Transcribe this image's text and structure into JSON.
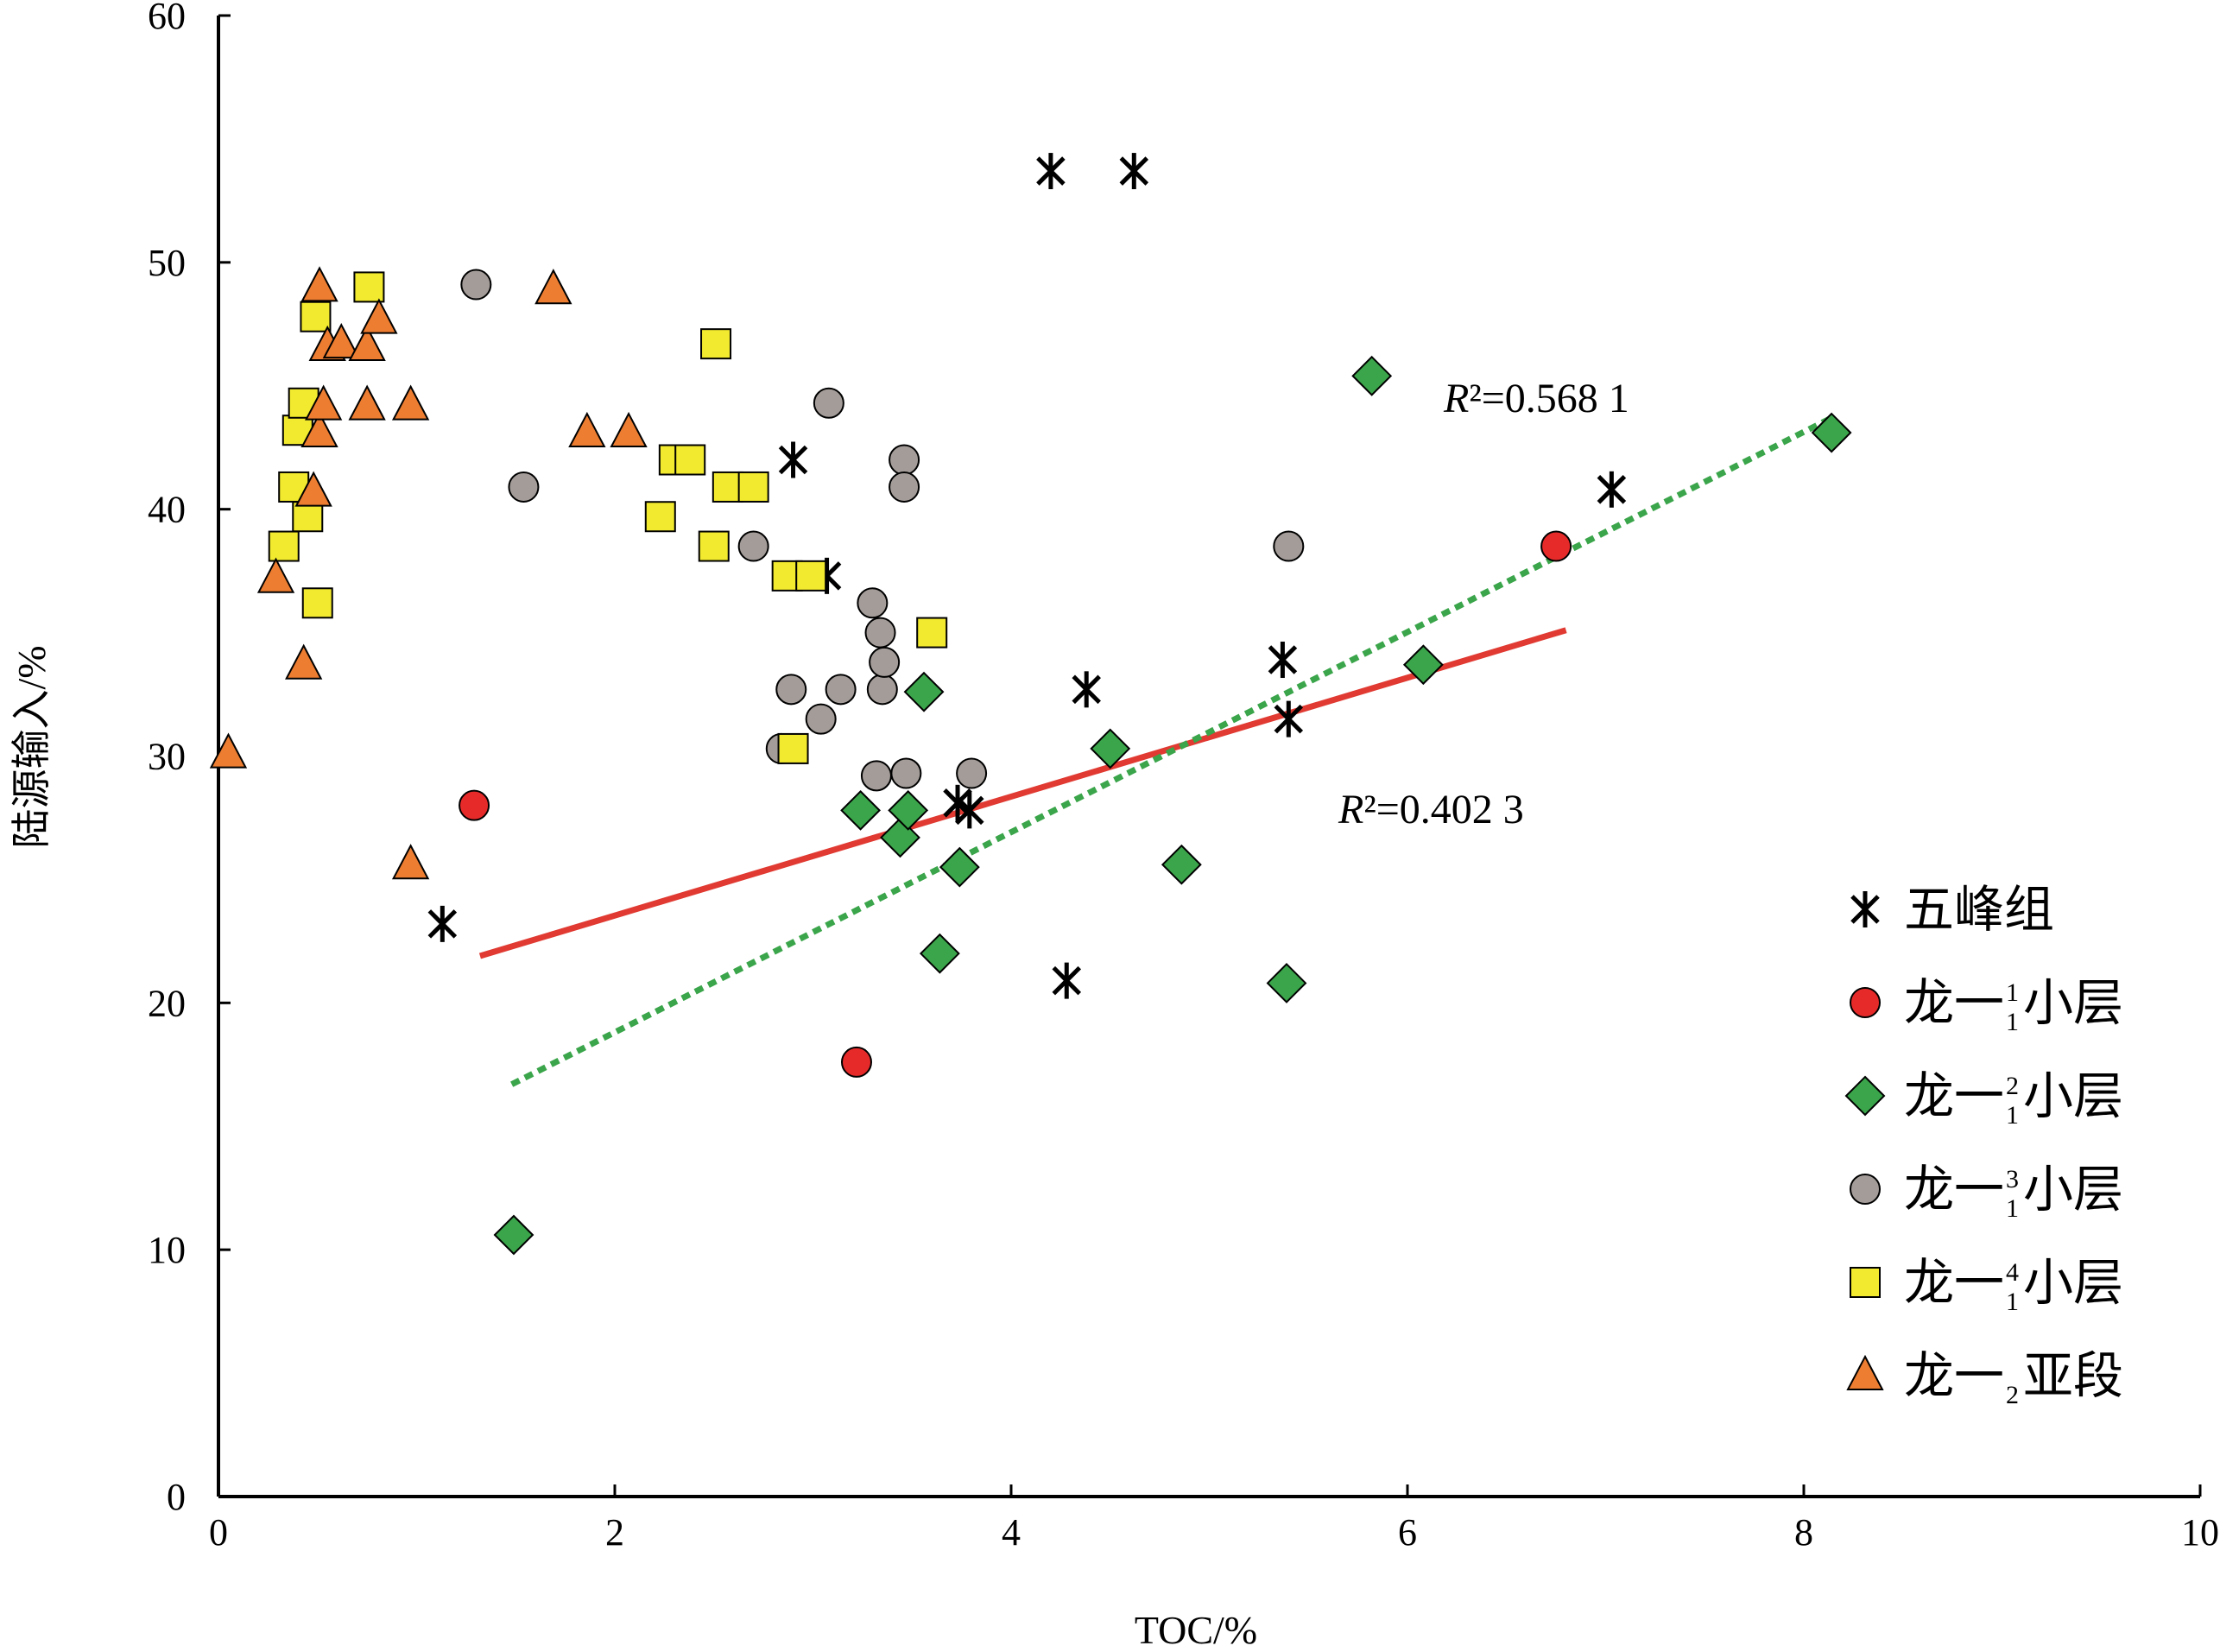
{
  "chart_data": {
    "type": "scatter",
    "xlabel": "TOC/%",
    "ylabel": "陆源输入/%",
    "xlim": [
      0,
      10
    ],
    "ylim": [
      0,
      60
    ],
    "xticks": [
      "0",
      "2",
      "4",
      "6",
      "8",
      "10"
    ],
    "yticks": [
      "0",
      "10",
      "20",
      "30",
      "40",
      "50",
      "60"
    ],
    "grid": false,
    "legend_position": "bottom-right",
    "series": [
      {
        "name": "五峰组",
        "marker": "asterisk",
        "color": "#000000",
        "points": [
          [
            1.13,
            23.2
          ],
          [
            2.9,
            42.0
          ],
          [
            3.07,
            37.3
          ],
          [
            3.79,
            27.8
          ],
          [
            3.73,
            28.1
          ],
          [
            4.2,
            53.7
          ],
          [
            4.62,
            53.7
          ],
          [
            4.28,
            20.9
          ],
          [
            4.38,
            32.7
          ],
          [
            5.37,
            33.9
          ],
          [
            5.4,
            31.5
          ],
          [
            7.03,
            40.8
          ]
        ]
      },
      {
        "name": "龙一",
        "name_sup": "1",
        "name_sub": "1",
        "name_tail": "小层",
        "marker": "circle",
        "color": "#e62a2a",
        "points": [
          [
            1.29,
            28.0
          ],
          [
            3.22,
            17.6
          ],
          [
            6.75,
            38.5
          ]
        ]
      },
      {
        "name": "龙一",
        "name_sup": "2",
        "name_sub": "1",
        "name_tail": "小层",
        "marker": "diamond",
        "color": "#3aa54a",
        "points": [
          [
            1.49,
            10.6
          ],
          [
            3.24,
            27.8
          ],
          [
            3.44,
            26.7
          ],
          [
            3.48,
            27.8
          ],
          [
            3.56,
            32.6
          ],
          [
            3.64,
            22.0
          ],
          [
            3.74,
            25.5
          ],
          [
            4.5,
            30.3
          ],
          [
            4.86,
            25.6
          ],
          [
            5.39,
            20.8
          ],
          [
            5.82,
            45.4
          ],
          [
            6.08,
            33.7
          ],
          [
            8.14,
            43.1
          ]
        ]
      },
      {
        "name": "龙一",
        "name_sup": "3",
        "name_sub": "1",
        "name_tail": "小层",
        "marker": "circle",
        "color": "#a39c99",
        "points": [
          [
            1.3,
            49.1
          ],
          [
            1.54,
            40.9
          ],
          [
            2.7,
            38.5
          ],
          [
            2.84,
            30.3
          ],
          [
            2.89,
            32.7
          ],
          [
            3.04,
            31.5
          ],
          [
            3.08,
            44.3
          ],
          [
            3.14,
            32.7
          ],
          [
            3.3,
            36.2
          ],
          [
            3.32,
            29.2
          ],
          [
            3.34,
            35.0
          ],
          [
            3.35,
            32.7
          ],
          [
            3.36,
            33.8
          ],
          [
            3.46,
            42.0
          ],
          [
            3.46,
            40.9
          ],
          [
            3.47,
            29.3
          ],
          [
            3.8,
            29.3
          ],
          [
            5.4,
            38.5
          ]
        ]
      },
      {
        "name": "龙一",
        "name_sup": "4",
        "name_sub": "1",
        "name_tail": "小层",
        "marker": "square",
        "color": "#f2ea2e",
        "points": [
          [
            0.33,
            38.5
          ],
          [
            0.38,
            40.9
          ],
          [
            0.4,
            43.2
          ],
          [
            0.43,
            44.3
          ],
          [
            0.45,
            39.7
          ],
          [
            0.49,
            47.8
          ],
          [
            0.5,
            36.2
          ],
          [
            0.76,
            49.0
          ],
          [
            2.23,
            39.7
          ],
          [
            2.3,
            42.0
          ],
          [
            2.38,
            42.0
          ],
          [
            2.5,
            38.5
          ],
          [
            2.51,
            46.7
          ],
          [
            2.57,
            40.9
          ],
          [
            2.7,
            40.9
          ],
          [
            2.87,
            37.3
          ],
          [
            2.9,
            30.3
          ],
          [
            2.99,
            37.3
          ],
          [
            3.6,
            35.0
          ]
        ]
      },
      {
        "name": "龙一",
        "name_sub": "2",
        "name_tail": "亚段",
        "marker": "triangle",
        "color": "#ed7d31",
        "points": [
          [
            0.05,
            30.1
          ],
          [
            0.29,
            37.2
          ],
          [
            0.43,
            33.7
          ],
          [
            0.48,
            40.7
          ],
          [
            0.51,
            43.1
          ],
          [
            0.51,
            49.0
          ],
          [
            0.53,
            44.2
          ],
          [
            0.55,
            46.6
          ],
          [
            0.62,
            46.7
          ],
          [
            0.75,
            46.6
          ],
          [
            0.75,
            44.2
          ],
          [
            0.81,
            47.7
          ],
          [
            0.97,
            44.2
          ],
          [
            0.97,
            25.6
          ],
          [
            1.69,
            48.9
          ],
          [
            1.86,
            43.1
          ],
          [
            2.07,
            43.1
          ]
        ]
      }
    ],
    "trendlines": [
      {
        "label": "R²=0.402 3",
        "color": "#e03a32",
        "style": "solid",
        "x": [
          1.32,
          6.8
        ],
        "y": [
          21.9,
          35.1
        ]
      },
      {
        "label": "R²=0.568 1",
        "color": "#3aa54a",
        "style": "dotted",
        "x": [
          1.48,
          8.14
        ],
        "y": [
          16.7,
          43.7
        ]
      }
    ],
    "annotations": {
      "r2_upper_letter": "R",
      "r2_upper_value": "²=0.568 1",
      "r2_lower_letter": "R",
      "r2_lower_value": "²=0.402 3"
    }
  }
}
